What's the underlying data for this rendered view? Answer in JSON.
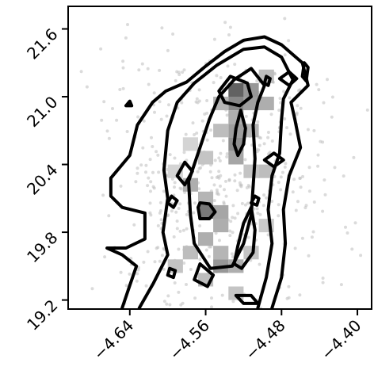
{
  "chart_data": {
    "type": "heatmap",
    "title": "",
    "xlabel": "",
    "ylabel": "",
    "xlim": [
      -4.705,
      -4.385
    ],
    "ylim": [
      19.12,
      21.8
    ],
    "x_ticks": [
      -4.64,
      -4.56,
      -4.48,
      -4.4
    ],
    "x_tick_labels": [
      "−4.64",
      "−4.56",
      "−4.48",
      "−4.40"
    ],
    "y_ticks": [
      19.2,
      19.8,
      20.4,
      21.0,
      21.6
    ],
    "y_tick_labels": [
      "19.2",
      "19.8",
      "20.4",
      "21.0",
      "21.6"
    ],
    "grid": false,
    "legend": "none",
    "colors": {
      "contour": "#000000",
      "density_scale": [
        "#f2f2f2",
        "#5a5a5a"
      ],
      "scatter": "#bdbdbd"
    },
    "hist_bins": {
      "x_step": 0.016,
      "y_step": 0.12
    },
    "density_cells": [
      {
        "x": -4.528,
        "y": 21.06,
        "value": 0.95
      },
      {
        "x": -4.528,
        "y": 20.94,
        "value": 0.7
      },
      {
        "x": -4.512,
        "y": 21.06,
        "value": 0.6
      },
      {
        "x": -4.512,
        "y": 20.94,
        "value": 0.55
      },
      {
        "x": -4.544,
        "y": 20.94,
        "value": 0.4
      },
      {
        "x": -4.496,
        "y": 20.94,
        "value": 0.45
      },
      {
        "x": -4.496,
        "y": 21.18,
        "value": 0.35
      },
      {
        "x": -4.528,
        "y": 20.82,
        "value": 0.45
      },
      {
        "x": -4.528,
        "y": 20.7,
        "value": 0.55
      },
      {
        "x": -4.528,
        "y": 20.58,
        "value": 0.65
      },
      {
        "x": -4.528,
        "y": 20.46,
        "value": 0.5
      },
      {
        "x": -4.512,
        "y": 20.7,
        "value": 0.4
      },
      {
        "x": -4.544,
        "y": 20.7,
        "value": 0.35
      },
      {
        "x": -4.512,
        "y": 20.34,
        "value": 0.3
      },
      {
        "x": -4.56,
        "y": 20.46,
        "value": 0.3
      },
      {
        "x": -4.576,
        "y": 20.22,
        "value": 0.45
      },
      {
        "x": -4.56,
        "y": 20.1,
        "value": 0.4
      },
      {
        "x": -4.56,
        "y": 19.98,
        "value": 0.8
      },
      {
        "x": -4.544,
        "y": 19.98,
        "value": 0.5
      },
      {
        "x": -4.544,
        "y": 19.86,
        "value": 0.45
      },
      {
        "x": -4.56,
        "y": 19.74,
        "value": 0.45
      },
      {
        "x": -4.544,
        "y": 19.62,
        "value": 0.4
      },
      {
        "x": -4.544,
        "y": 19.5,
        "value": 0.6
      },
      {
        "x": -4.528,
        "y": 19.5,
        "value": 0.45
      },
      {
        "x": -4.576,
        "y": 19.62,
        "value": 0.35
      },
      {
        "x": -4.592,
        "y": 19.5,
        "value": 0.3
      },
      {
        "x": -4.56,
        "y": 19.38,
        "value": 0.35
      },
      {
        "x": -4.528,
        "y": 19.26,
        "value": 0.3
      },
      {
        "x": -4.496,
        "y": 20.34,
        "value": 0.35
      },
      {
        "x": -4.496,
        "y": 19.86,
        "value": 0.25
      },
      {
        "x": -4.512,
        "y": 19.62,
        "value": 0.3
      },
      {
        "x": -4.576,
        "y": 20.58,
        "value": 0.2
      },
      {
        "x": -4.592,
        "y": 20.34,
        "value": 0.2
      }
    ],
    "contours": [
      {
        "level": 1,
        "points": [
          [
            -4.648,
            19.13
          ],
          [
            -4.64,
            19.33
          ],
          [
            -4.633,
            19.5
          ],
          [
            -4.648,
            19.6
          ],
          [
            -4.664,
            19.66
          ],
          [
            -4.644,
            19.66
          ],
          [
            -4.624,
            19.74
          ],
          [
            -4.624,
            19.97
          ],
          [
            -4.648,
            20.02
          ],
          [
            -4.66,
            20.12
          ],
          [
            -4.66,
            20.28
          ],
          [
            -4.64,
            20.48
          ],
          [
            -4.632,
            20.75
          ],
          [
            -4.616,
            20.95
          ],
          [
            -4.602,
            21.05
          ],
          [
            -4.58,
            21.13
          ],
          [
            -4.56,
            21.27
          ],
          [
            -4.54,
            21.4
          ],
          [
            -4.52,
            21.5
          ],
          [
            -4.498,
            21.53
          ],
          [
            -4.48,
            21.46
          ],
          [
            -4.458,
            21.3
          ],
          [
            -4.452,
            21.1
          ],
          [
            -4.47,
            20.95
          ],
          [
            -4.466,
            20.8
          ],
          [
            -4.46,
            20.55
          ],
          [
            -4.472,
            20.3
          ],
          [
            -4.478,
            20.0
          ],
          [
            -4.476,
            19.7
          ],
          [
            -4.48,
            19.4
          ],
          [
            -4.49,
            19.13
          ]
        ]
      },
      {
        "level": 2,
        "points": [
          [
            -4.63,
            19.13
          ],
          [
            -4.615,
            19.35
          ],
          [
            -4.6,
            19.6
          ],
          [
            -4.605,
            19.8
          ],
          [
            -4.6,
            20.1
          ],
          [
            -4.604,
            20.35
          ],
          [
            -4.6,
            20.7
          ],
          [
            -4.59,
            20.95
          ],
          [
            -4.572,
            21.12
          ],
          [
            -4.548,
            21.28
          ],
          [
            -4.52,
            21.42
          ],
          [
            -4.498,
            21.44
          ],
          [
            -4.48,
            21.35
          ],
          [
            -4.468,
            21.15
          ],
          [
            -4.478,
            20.98
          ],
          [
            -4.48,
            20.8
          ],
          [
            -4.482,
            20.5
          ],
          [
            -4.49,
            20.3
          ],
          [
            -4.494,
            20.0
          ],
          [
            -4.49,
            19.7
          ],
          [
            -4.496,
            19.4
          ],
          [
            -4.505,
            19.13
          ]
        ]
      },
      {
        "level": 3,
        "points": [
          [
            -4.555,
            19.48
          ],
          [
            -4.572,
            19.7
          ],
          [
            -4.576,
            19.95
          ],
          [
            -4.578,
            20.25
          ],
          [
            -4.566,
            20.55
          ],
          [
            -4.556,
            20.8
          ],
          [
            -4.546,
            21.0
          ],
          [
            -4.53,
            21.15
          ],
          [
            -4.512,
            21.25
          ],
          [
            -4.498,
            21.1
          ],
          [
            -4.505,
            20.95
          ],
          [
            -4.51,
            20.75
          ],
          [
            -4.508,
            20.45
          ],
          [
            -4.51,
            20.2
          ],
          [
            -4.512,
            19.95
          ],
          [
            -4.52,
            19.7
          ],
          [
            -4.532,
            19.5
          ],
          [
            -4.555,
            19.48
          ]
        ]
      },
      {
        "level": 4,
        "points": [
          [
            -4.534,
            21.18
          ],
          [
            -4.546,
            21.05
          ],
          [
            -4.54,
            20.95
          ],
          [
            -4.524,
            20.92
          ],
          [
            -4.512,
            21.0
          ],
          [
            -4.516,
            21.12
          ],
          [
            -4.534,
            21.18
          ]
        ]
      },
      {
        "level": 4,
        "points": [
          [
            -4.523,
            20.88
          ],
          [
            -4.528,
            20.72
          ],
          [
            -4.53,
            20.58
          ],
          [
            -4.526,
            20.48
          ],
          [
            -4.52,
            20.58
          ],
          [
            -4.518,
            20.72
          ],
          [
            -4.523,
            20.88
          ]
        ]
      },
      {
        "level": 4,
        "points": [
          [
            -4.568,
            20.02
          ],
          [
            -4.566,
            19.92
          ],
          [
            -4.556,
            19.92
          ],
          [
            -4.55,
            19.98
          ],
          [
            -4.556,
            20.05
          ],
          [
            -4.566,
            20.06
          ],
          [
            -4.568,
            20.02
          ]
        ]
      },
      {
        "level": 4,
        "points": [
          [
            -4.582,
            20.42
          ],
          [
            -4.59,
            20.3
          ],
          [
            -4.582,
            20.22
          ],
          [
            -4.574,
            20.34
          ],
          [
            -4.582,
            20.42
          ]
        ]
      },
      {
        "level": 4,
        "points": [
          [
            -4.512,
            20.02
          ],
          [
            -4.52,
            19.88
          ],
          [
            -4.526,
            19.68
          ],
          [
            -4.53,
            19.52
          ],
          [
            -4.522,
            19.48
          ],
          [
            -4.51,
            19.62
          ],
          [
            -4.508,
            19.82
          ],
          [
            -4.512,
            20.02
          ]
        ]
      },
      {
        "level": 4,
        "points": [
          [
            -4.566,
            19.52
          ],
          [
            -4.572,
            19.38
          ],
          [
            -4.558,
            19.32
          ],
          [
            -4.552,
            19.42
          ],
          [
            -4.566,
            19.52
          ]
        ]
      },
      {
        "level": 4,
        "points": [
          [
            -4.528,
            19.24
          ],
          [
            -4.52,
            19.17
          ],
          [
            -4.505,
            19.17
          ],
          [
            -4.512,
            19.24
          ],
          [
            -4.528,
            19.24
          ]
        ]
      },
      {
        "level": 4,
        "points": [
          [
            -4.472,
            21.22
          ],
          [
            -4.482,
            21.16
          ],
          [
            -4.472,
            21.1
          ],
          [
            -4.464,
            21.16
          ],
          [
            -4.472,
            21.22
          ]
        ]
      },
      {
        "level": 4,
        "points": [
          [
            -4.488,
            20.5
          ],
          [
            -4.498,
            20.44
          ],
          [
            -4.488,
            20.38
          ],
          [
            -4.478,
            20.44
          ],
          [
            -4.488,
            20.5
          ]
        ]
      },
      {
        "level": 4,
        "points": [
          [
            -4.596,
            20.12
          ],
          [
            -4.6,
            20.06
          ],
          [
            -4.594,
            20.02
          ],
          [
            -4.59,
            20.08
          ],
          [
            -4.596,
            20.12
          ]
        ]
      },
      {
        "level": 4,
        "points": [
          [
            -4.598,
            19.48
          ],
          [
            -4.6,
            19.42
          ],
          [
            -4.594,
            19.4
          ],
          [
            -4.592,
            19.46
          ],
          [
            -4.598,
            19.48
          ]
        ]
      },
      {
        "level": 4,
        "points": [
          [
            -4.508,
            20.12
          ],
          [
            -4.512,
            20.06
          ],
          [
            -4.506,
            20.04
          ],
          [
            -4.504,
            20.1
          ],
          [
            -4.508,
            20.12
          ]
        ]
      },
      {
        "level": 5,
        "points": [
          [
            -4.496,
            21.18
          ],
          [
            -4.498,
            21.12
          ],
          [
            -4.494,
            21.1
          ],
          [
            -4.492,
            21.16
          ],
          [
            -4.496,
            21.18
          ]
        ]
      },
      {
        "level": 5,
        "points": [
          [
            -4.456,
            21.3
          ],
          [
            -4.458,
            21.18
          ],
          [
            -4.454,
            21.14
          ],
          [
            -4.452,
            21.26
          ],
          [
            -4.456,
            21.3
          ]
        ]
      },
      {
        "level": 5,
        "points": [
          [
            -4.64,
            20.96
          ],
          [
            -4.644,
            20.92
          ],
          [
            -4.638,
            20.92
          ],
          [
            -4.64,
            20.96
          ]
        ]
      }
    ]
  }
}
